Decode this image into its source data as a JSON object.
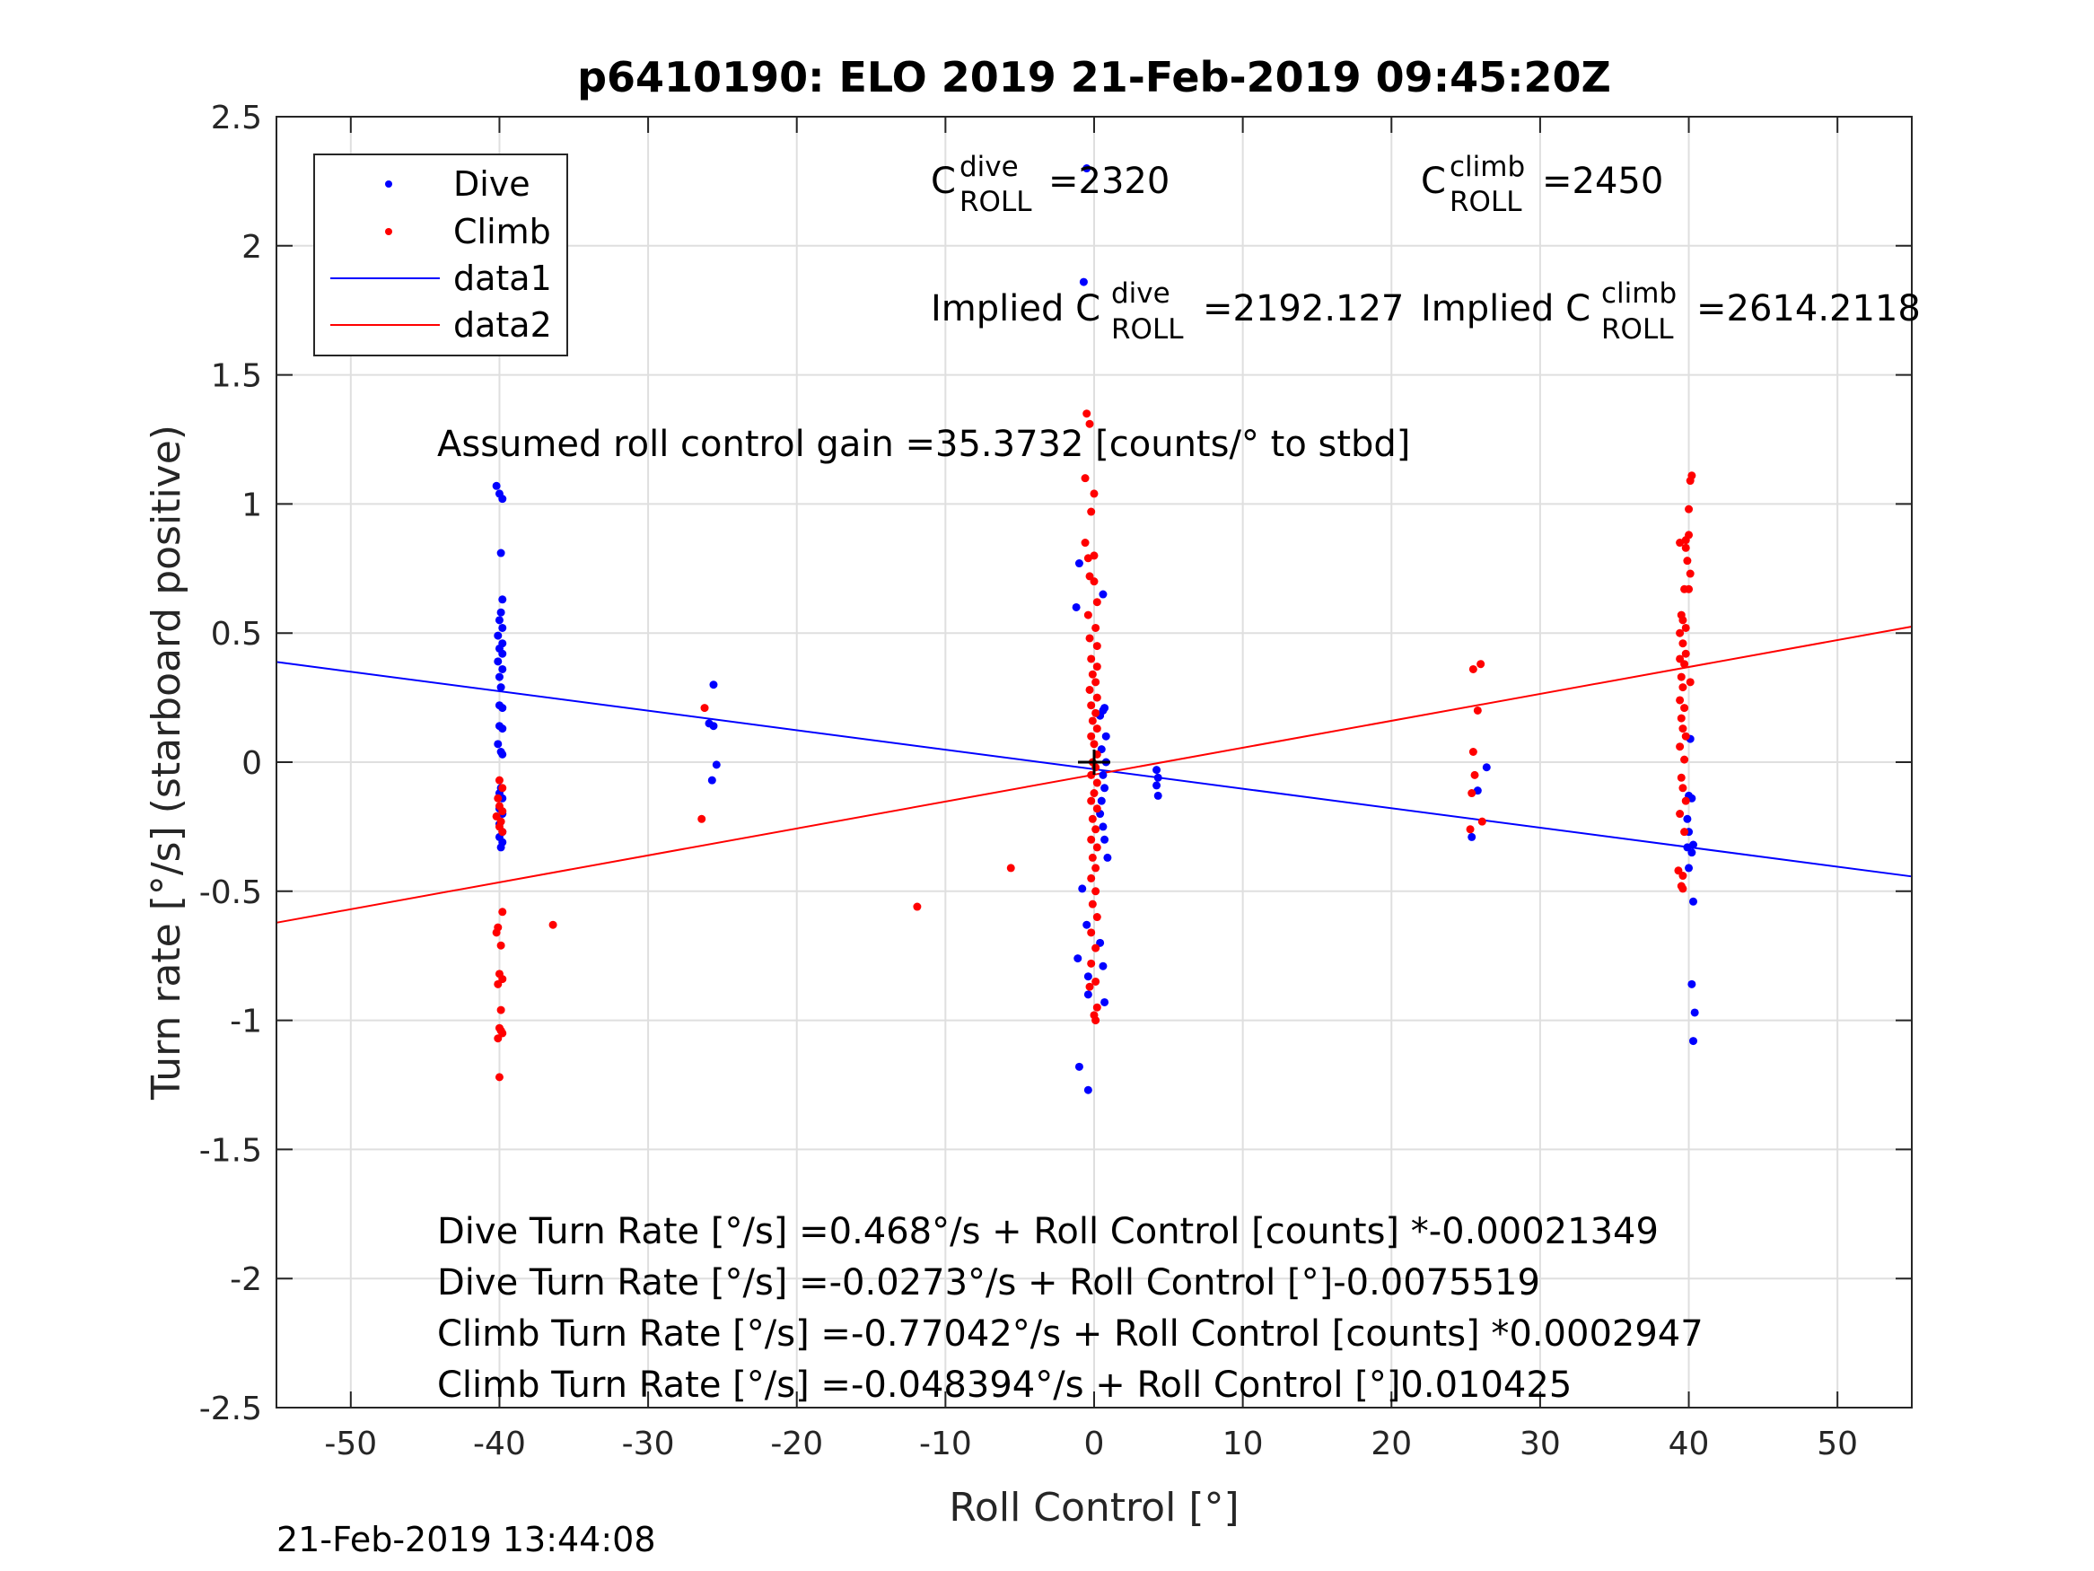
{
  "colors": {
    "dive": "#0000ff",
    "climb": "#ff0000",
    "axis": "#262626",
    "grid": "#dfdfdf",
    "background": "#ffffff"
  },
  "timestamp": "21-Feb-2019 13:44:08",
  "chart_data": {
    "type": "scatter",
    "title": "p6410190: ELO 2019 21-Feb-2019 09:45:20Z",
    "xlabel": "Roll Control [°]",
    "ylabel": "Turn rate [°/s] (starboard positive)",
    "xlim": [
      -55,
      55
    ],
    "ylim": [
      -2.5,
      2.5
    ],
    "xticks": [
      -50,
      -40,
      -30,
      -20,
      -10,
      0,
      10,
      20,
      30,
      40,
      50
    ],
    "yticks": [
      -2.5,
      -2,
      -1.5,
      -1,
      -0.5,
      0,
      0.5,
      1,
      1.5,
      2,
      2.5
    ],
    "xtick_labels": [
      "-50",
      "-40",
      "-30",
      "-20",
      "-10",
      "0",
      "10",
      "20",
      "30",
      "40",
      "50"
    ],
    "ytick_labels": [
      "-2.5",
      "-2",
      "-1.5",
      "-1",
      "-0.5",
      "0",
      "0.5",
      "1",
      "1.5",
      "2",
      "2.5"
    ],
    "grid": true,
    "legend": {
      "position": "top-left",
      "entries": [
        {
          "label": "Dive",
          "kind": "marker",
          "color": "#0000ff"
        },
        {
          "label": "Climb",
          "kind": "marker",
          "color": "#ff0000"
        },
        {
          "label": "data1",
          "kind": "line",
          "color": "#0000ff"
        },
        {
          "label": "data2",
          "kind": "line",
          "color": "#ff0000"
        }
      ]
    },
    "series": [
      {
        "name": "Dive",
        "kind": "scatter",
        "color": "#0000ff",
        "points": [
          [
            -40.2,
            1.07
          ],
          [
            -40.0,
            1.04
          ],
          [
            -39.8,
            1.02
          ],
          [
            -39.9,
            0.81
          ],
          [
            -39.8,
            0.63
          ],
          [
            -39.9,
            0.58
          ],
          [
            -40.0,
            0.55
          ],
          [
            -39.8,
            0.52
          ],
          [
            -40.1,
            0.49
          ],
          [
            -39.8,
            0.46
          ],
          [
            -40.0,
            0.44
          ],
          [
            -39.8,
            0.42
          ],
          [
            -40.1,
            0.39
          ],
          [
            -39.8,
            0.36
          ],
          [
            -40.0,
            0.33
          ],
          [
            -39.9,
            0.29
          ],
          [
            -40.0,
            0.22
          ],
          [
            -39.8,
            0.21
          ],
          [
            -40.0,
            0.14
          ],
          [
            -39.8,
            0.13
          ],
          [
            -40.1,
            0.07
          ],
          [
            -39.9,
            0.04
          ],
          [
            -39.8,
            0.03
          ],
          [
            -39.9,
            -0.1
          ],
          [
            -40.0,
            -0.12
          ],
          [
            -39.8,
            -0.14
          ],
          [
            -40.0,
            -0.18
          ],
          [
            -39.8,
            -0.2
          ],
          [
            -40.0,
            -0.24
          ],
          [
            -39.8,
            -0.27
          ],
          [
            -40.0,
            -0.29
          ],
          [
            -39.8,
            -0.31
          ],
          [
            -39.9,
            -0.33
          ],
          [
            -25.6,
            0.3
          ],
          [
            -25.9,
            0.15
          ],
          [
            -25.6,
            0.14
          ],
          [
            -25.7,
            -0.07
          ],
          [
            -25.4,
            -0.01
          ],
          [
            -0.5,
            2.3
          ],
          [
            -0.7,
            1.86
          ],
          [
            -1.0,
            0.77
          ],
          [
            -1.2,
            0.6
          ],
          [
            0.6,
            0.65
          ],
          [
            0.7,
            0.21
          ],
          [
            0.6,
            0.2
          ],
          [
            0.4,
            0.18
          ],
          [
            0.8,
            0.1
          ],
          [
            0.5,
            0.05
          ],
          [
            0.8,
            0.0
          ],
          [
            0.6,
            -0.05
          ],
          [
            0.7,
            -0.1
          ],
          [
            0.5,
            -0.15
          ],
          [
            0.4,
            -0.2
          ],
          [
            0.6,
            -0.25
          ],
          [
            0.7,
            -0.3
          ],
          [
            0.9,
            -0.37
          ],
          [
            -0.8,
            -0.49
          ],
          [
            -0.5,
            -0.63
          ],
          [
            0.4,
            -0.7
          ],
          [
            -1.1,
            -0.76
          ],
          [
            -0.4,
            -0.83
          ],
          [
            0.6,
            -0.79
          ],
          [
            -0.4,
            -0.9
          ],
          [
            0.7,
            -0.93
          ],
          [
            -1.0,
            -1.18
          ],
          [
            -0.4,
            -1.27
          ],
          [
            4.2,
            -0.03
          ],
          [
            4.3,
            -0.06
          ],
          [
            4.2,
            -0.09
          ],
          [
            4.3,
            -0.13
          ],
          [
            25.4,
            -0.29
          ],
          [
            25.8,
            -0.11
          ],
          [
            26.4,
            -0.02
          ],
          [
            40.1,
            0.09
          ],
          [
            40.0,
            -0.13
          ],
          [
            40.2,
            -0.14
          ],
          [
            39.9,
            -0.22
          ],
          [
            40.0,
            -0.27
          ],
          [
            39.9,
            -0.33
          ],
          [
            40.3,
            -0.32
          ],
          [
            40.2,
            -0.35
          ],
          [
            40.0,
            -0.41
          ],
          [
            40.3,
            -0.54
          ],
          [
            40.2,
            -0.86
          ],
          [
            40.4,
            -0.97
          ],
          [
            40.3,
            -1.08
          ]
        ]
      },
      {
        "name": "Climb",
        "kind": "scatter",
        "color": "#ff0000",
        "points": [
          [
            -40.0,
            -0.07
          ],
          [
            -39.8,
            -0.1
          ],
          [
            -40.1,
            -0.14
          ],
          [
            -40.0,
            -0.17
          ],
          [
            -39.8,
            -0.19
          ],
          [
            -40.2,
            -0.21
          ],
          [
            -39.9,
            -0.23
          ],
          [
            -40.0,
            -0.25
          ],
          [
            -39.8,
            -0.27
          ],
          [
            -40.1,
            -0.64
          ],
          [
            -40.2,
            -0.66
          ],
          [
            -39.8,
            -0.58
          ],
          [
            -39.9,
            -0.71
          ],
          [
            -40.0,
            -0.82
          ],
          [
            -39.8,
            -0.84
          ],
          [
            -40.1,
            -0.86
          ],
          [
            -39.9,
            -0.96
          ],
          [
            -40.0,
            -1.03
          ],
          [
            -39.8,
            -1.05
          ],
          [
            -39.9,
            -1.04
          ],
          [
            -40.1,
            -1.07
          ],
          [
            -40.0,
            -1.22
          ],
          [
            -36.4,
            -0.63
          ],
          [
            -26.2,
            0.21
          ],
          [
            -26.4,
            -0.22
          ],
          [
            -11.9,
            -0.56
          ],
          [
            -5.6,
            -0.41
          ],
          [
            -0.5,
            1.35
          ],
          [
            -0.3,
            1.31
          ],
          [
            -0.6,
            1.1
          ],
          [
            0.0,
            1.04
          ],
          [
            -0.2,
            0.97
          ],
          [
            -0.6,
            0.85
          ],
          [
            -0.4,
            0.79
          ],
          [
            0.0,
            0.8
          ],
          [
            -0.3,
            0.72
          ],
          [
            0.0,
            0.7
          ],
          [
            0.2,
            0.62
          ],
          [
            -0.4,
            0.57
          ],
          [
            0.1,
            0.52
          ],
          [
            -0.3,
            0.48
          ],
          [
            0.2,
            0.45
          ],
          [
            -0.2,
            0.4
          ],
          [
            0.2,
            0.37
          ],
          [
            -0.1,
            0.34
          ],
          [
            0.1,
            0.31
          ],
          [
            -0.3,
            0.28
          ],
          [
            0.2,
            0.25
          ],
          [
            -0.2,
            0.22
          ],
          [
            0.1,
            0.19
          ],
          [
            -0.1,
            0.16
          ],
          [
            0.2,
            0.13
          ],
          [
            -0.2,
            0.1
          ],
          [
            0.0,
            0.07
          ],
          [
            0.2,
            0.03
          ],
          [
            -0.1,
            0.0
          ],
          [
            0.1,
            -0.02
          ],
          [
            -0.2,
            -0.05
          ],
          [
            0.2,
            -0.08
          ],
          [
            0.0,
            -0.12
          ],
          [
            -0.2,
            -0.15
          ],
          [
            0.2,
            -0.18
          ],
          [
            -0.1,
            -0.22
          ],
          [
            0.1,
            -0.26
          ],
          [
            -0.2,
            -0.3
          ],
          [
            0.2,
            -0.33
          ],
          [
            -0.1,
            -0.37
          ],
          [
            0.1,
            -0.41
          ],
          [
            -0.2,
            -0.45
          ],
          [
            0.1,
            -0.5
          ],
          [
            -0.1,
            -0.55
          ],
          [
            0.2,
            -0.6
          ],
          [
            -0.2,
            -0.66
          ],
          [
            0.1,
            -0.72
          ],
          [
            -0.2,
            -0.78
          ],
          [
            0.1,
            -0.85
          ],
          [
            -0.3,
            -0.87
          ],
          [
            0.2,
            -0.95
          ],
          [
            0.0,
            -0.98
          ],
          [
            0.1,
            -1.0
          ],
          [
            25.5,
            0.36
          ],
          [
            26.0,
            0.38
          ],
          [
            25.8,
            0.2
          ],
          [
            25.5,
            0.04
          ],
          [
            25.6,
            -0.05
          ],
          [
            25.4,
            -0.12
          ],
          [
            26.1,
            -0.23
          ],
          [
            25.3,
            -0.26
          ],
          [
            40.2,
            1.11
          ],
          [
            40.1,
            1.09
          ],
          [
            40.0,
            0.98
          ],
          [
            39.4,
            0.85
          ],
          [
            39.8,
            0.86
          ],
          [
            40.0,
            0.88
          ],
          [
            39.8,
            0.83
          ],
          [
            39.9,
            0.78
          ],
          [
            40.1,
            0.73
          ],
          [
            39.7,
            0.67
          ],
          [
            40.0,
            0.67
          ],
          [
            39.5,
            0.57
          ],
          [
            39.6,
            0.55
          ],
          [
            39.8,
            0.52
          ],
          [
            39.4,
            0.5
          ],
          [
            39.6,
            0.46
          ],
          [
            39.8,
            0.42
          ],
          [
            39.4,
            0.4
          ],
          [
            39.7,
            0.38
          ],
          [
            39.5,
            0.33
          ],
          [
            39.6,
            0.29
          ],
          [
            40.1,
            0.31
          ],
          [
            39.4,
            0.24
          ],
          [
            39.7,
            0.21
          ],
          [
            39.5,
            0.17
          ],
          [
            39.6,
            0.13
          ],
          [
            39.8,
            0.1
          ],
          [
            39.4,
            0.06
          ],
          [
            39.7,
            0.01
          ],
          [
            39.5,
            -0.06
          ],
          [
            39.6,
            -0.1
          ],
          [
            39.8,
            -0.15
          ],
          [
            39.4,
            -0.2
          ],
          [
            39.7,
            -0.27
          ],
          [
            39.3,
            -0.42
          ],
          [
            39.6,
            -0.44
          ],
          [
            39.5,
            -0.48
          ],
          [
            39.6,
            -0.49
          ]
        ]
      },
      {
        "name": "data1",
        "kind": "line",
        "color": "#0000ff",
        "x": [
          -55,
          55
        ],
        "y": [
          0.3881,
          -0.4427
        ]
      },
      {
        "name": "data2",
        "kind": "line",
        "color": "#ff0000",
        "x": [
          -55,
          55
        ],
        "y": [
          -0.6217,
          0.525
        ]
      }
    ],
    "center_marker": {
      "x": 0,
      "y": 0,
      "color": "#000000"
    },
    "annotations": {
      "c_dive": {
        "base": "C",
        "sup": "dive",
        "sub": "ROLL",
        "value": "=2320"
      },
      "c_climb": {
        "base": "C",
        "sup": "climb",
        "sub": "ROLL",
        "value": "=2450"
      },
      "implied_dive": {
        "prefix": "Implied C",
        "sup": "dive",
        "sub": "ROLL",
        "value": "=2192.127"
      },
      "implied_climb": {
        "prefix": "Implied C",
        "sup": "climb",
        "sub": "ROLL",
        "value": "=2614.2118"
      },
      "gain": "Assumed roll control gain =35.3732 [counts/° to stbd]",
      "eq1": "Dive Turn Rate [°/s] =0.468°/s + Roll Control [counts] *-0.00021349",
      "eq2": "Dive Turn Rate [°/s] =-0.0273°/s + Roll Control [°]-0.0075519",
      "eq3": "Climb Turn Rate [°/s] =-0.77042°/s + Roll Control [counts] *0.0002947",
      "eq4": "Climb Turn Rate [°/s] =-0.048394°/s + Roll Control [°]0.010425"
    }
  }
}
